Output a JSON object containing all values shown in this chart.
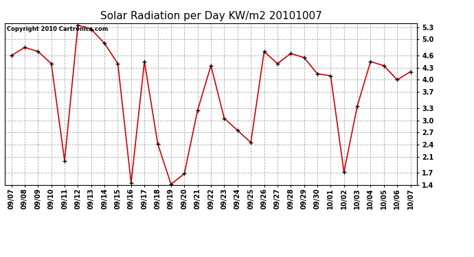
{
  "title": "Solar Radiation per Day KW/m2 20101007",
  "copyright": "Copyright 2010 Cartronics.com",
  "labels": [
    "09/07",
    "09/08",
    "09/09",
    "09/10",
    "09/11",
    "09/12",
    "09/13",
    "09/14",
    "09/15",
    "09/16",
    "09/17",
    "09/18",
    "09/19",
    "09/20",
    "09/21",
    "09/22",
    "09/23",
    "09/24",
    "09/25",
    "09/26",
    "09/27",
    "09/28",
    "09/29",
    "09/30",
    "10/01",
    "10/02",
    "10/03",
    "10/04",
    "10/05",
    "10/06",
    "10/07"
  ],
  "values": [
    4.6,
    4.8,
    4.7,
    4.4,
    2.0,
    5.35,
    5.25,
    4.9,
    4.4,
    1.45,
    4.45,
    2.42,
    1.42,
    1.68,
    3.25,
    4.35,
    3.05,
    2.75,
    2.45,
    4.7,
    4.4,
    4.65,
    4.55,
    4.15,
    4.1,
    1.72,
    3.35,
    4.45,
    4.35,
    4.0,
    4.2
  ],
  "line_color": "#cc0000",
  "marker_color": "#000000",
  "bg_color": "#ffffff",
  "grid_color": "#aaaaaa",
  "ylim": [
    1.4,
    5.4
  ],
  "yticks": [
    1.4,
    1.7,
    2.1,
    2.4,
    2.7,
    3.0,
    3.3,
    3.7,
    4.0,
    4.3,
    4.6,
    5.0,
    5.3
  ],
  "title_fontsize": 11,
  "copyright_fontsize": 6,
  "tick_fontsize": 7
}
